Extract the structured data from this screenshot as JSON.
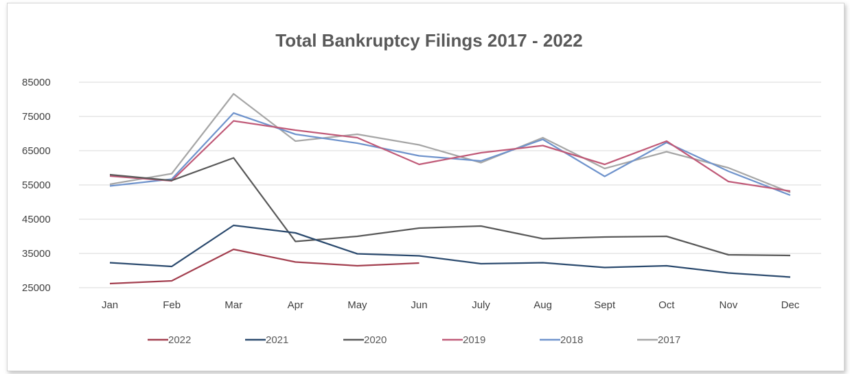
{
  "chart_data": {
    "type": "line",
    "title": "Total Bankruptcy Filings 2017 - 2022",
    "categories": [
      "Jan",
      "Feb",
      "Mar",
      "Apr",
      "May",
      "Jun",
      "July",
      "Aug",
      "Sept",
      "Oct",
      "Nov",
      "Dec"
    ],
    "ylim": [
      25000,
      85000
    ],
    "yticks": [
      25000,
      35000,
      45000,
      55000,
      65000,
      75000,
      85000
    ],
    "ytick_labels": [
      "25000",
      "35000",
      "45000",
      "55000",
      "65000",
      "75000",
      "85000"
    ],
    "grid": true,
    "legend_position": "bottom",
    "series": [
      {
        "name": "2022",
        "color": "#a33f4f",
        "values": [
          26200,
          27000,
          36200,
          32500,
          31400,
          32200,
          null,
          null,
          null,
          null,
          null,
          null
        ]
      },
      {
        "name": "2021",
        "color": "#2b4a6e",
        "values": [
          32300,
          31200,
          43200,
          41000,
          34900,
          34300,
          32000,
          32300,
          30900,
          31400,
          29300,
          28100
        ]
      },
      {
        "name": "2020",
        "color": "#595959",
        "values": [
          58000,
          56300,
          62900,
          38500,
          40000,
          42400,
          43000,
          39300,
          39800,
          40000,
          34600,
          34400
        ]
      },
      {
        "name": "2019",
        "color": "#c05a78",
        "values": [
          57600,
          56200,
          73700,
          71000,
          68800,
          61000,
          64400,
          66500,
          61000,
          67800,
          56000,
          53200
        ]
      },
      {
        "name": "2018",
        "color": "#6f93cc",
        "values": [
          54700,
          56700,
          76000,
          69800,
          67200,
          63500,
          62000,
          68300,
          57500,
          67400,
          59000,
          52000
        ]
      },
      {
        "name": "2017",
        "color": "#a6a6a6",
        "values": [
          55200,
          58300,
          81600,
          67800,
          69800,
          66700,
          61500,
          68800,
          59800,
          64700,
          60000,
          52800
        ]
      }
    ]
  }
}
